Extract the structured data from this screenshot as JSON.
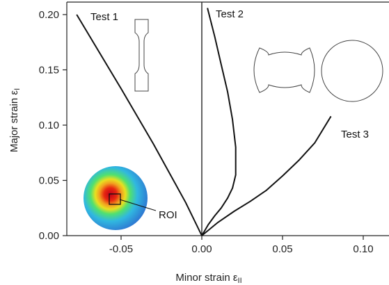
{
  "chart_data": {
    "type": "line",
    "xlabel": "Minor strain ε",
    "xlabel_sub": "II",
    "ylabel": "Major strain ε",
    "ylabel_sub": "I",
    "xlim": [
      -0.085,
      0.115
    ],
    "ylim": [
      -0.003,
      0.205
    ],
    "x_ticks": [
      {
        "value": -0.05,
        "label": "-0.05"
      },
      {
        "value": 0.0,
        "label": "0.00"
      },
      {
        "value": 0.05,
        "label": "0.05"
      },
      {
        "value": 0.1,
        "label": "0.10"
      }
    ],
    "y_ticks": [
      {
        "value": 0.0,
        "label": "0.00"
      },
      {
        "value": 0.05,
        "label": "0.05"
      },
      {
        "value": 0.1,
        "label": "0.10"
      },
      {
        "value": 0.15,
        "label": "0.15"
      },
      {
        "value": 0.2,
        "label": "0.20"
      }
    ],
    "grid": false,
    "series": [
      {
        "name": "Test 1",
        "x": [
          -0.0775,
          -0.05,
          -0.03,
          -0.01,
          0.0
        ],
        "y": [
          0.2,
          0.133,
          0.083,
          0.03,
          0.0
        ]
      },
      {
        "name": "Test 2",
        "x": [
          0.0,
          0.004,
          0.008,
          0.012,
          0.016,
          0.019,
          0.021,
          0.021,
          0.019,
          0.016,
          0.012,
          0.008,
          0.0035
        ],
        "y": [
          0.0,
          0.01,
          0.018,
          0.025,
          0.034,
          0.043,
          0.055,
          0.08,
          0.105,
          0.13,
          0.155,
          0.18,
          0.206
        ]
      },
      {
        "name": "Test 3",
        "x": [
          0.0,
          0.01,
          0.02,
          0.03,
          0.04,
          0.05,
          0.06,
          0.07,
          0.08
        ],
        "y": [
          0.0,
          0.012,
          0.022,
          0.031,
          0.041,
          0.054,
          0.068,
          0.084,
          0.108
        ]
      }
    ],
    "annotations": [
      "Test 1",
      "Test 2",
      "Test 3",
      "ROI"
    ]
  }
}
